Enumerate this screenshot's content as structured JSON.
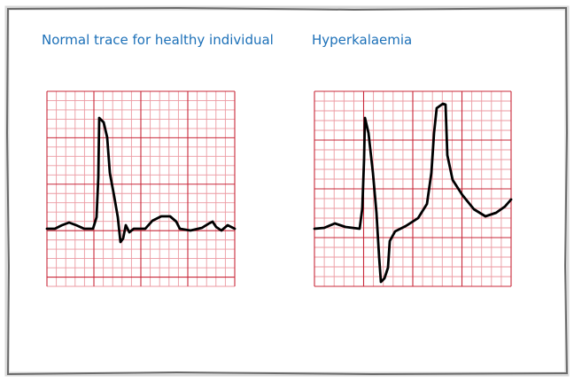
{
  "panels": [
    {
      "title": "Normal trace for healthy individual"
    },
    {
      "title": "Hyperkalaemia"
    }
  ]
}
